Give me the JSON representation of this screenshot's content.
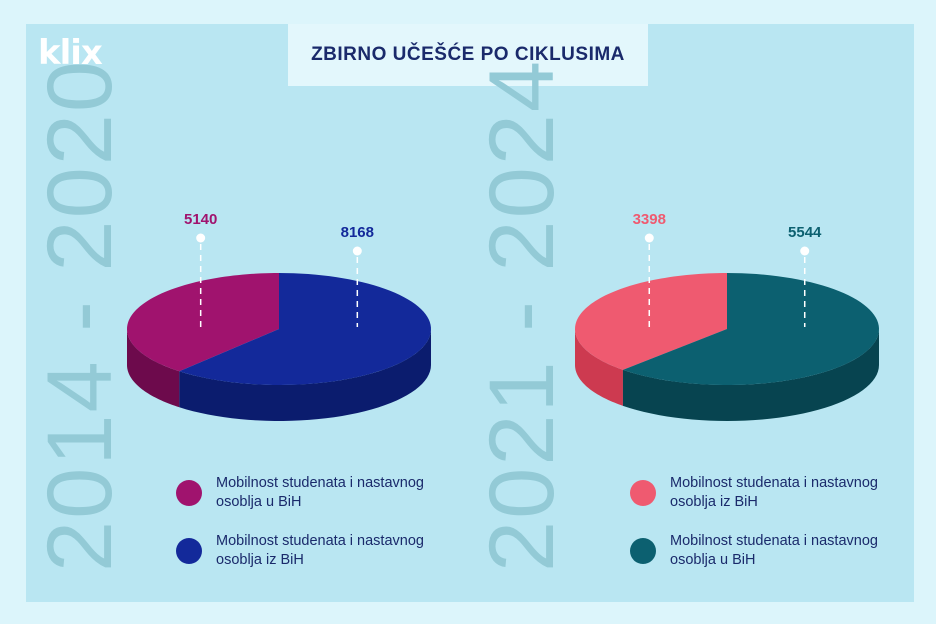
{
  "logo": "klix",
  "title": "ZBIRNO UČEŠĆE PO CIKLUSIMA",
  "chart_data": [
    {
      "type": "pie",
      "period": "2014 - 2020",
      "slices": [
        {
          "label": "Mobilnost studenata i nastavnog osoblja u BiH",
          "value": 5140,
          "color": "#a0136e",
          "side_color": "#6d0a4c"
        },
        {
          "label": "Mobilnost studenata i nastavnog osoblja iz BiH",
          "value": 8168,
          "color": "#13299a",
          "side_color": "#0b1c6e"
        }
      ]
    },
    {
      "type": "pie",
      "period": "2021 - 2024",
      "slices": [
        {
          "label": "Mobilnost studenata i nastavnog osoblja iz BiH",
          "value": 3398,
          "color": "#ef5a70",
          "side_color": "#cd3a50"
        },
        {
          "label": "Mobilnost studenata i nastavnog osoblja u BiH",
          "value": 5544,
          "color": "#0c6070",
          "side_color": "#074450"
        }
      ]
    }
  ]
}
